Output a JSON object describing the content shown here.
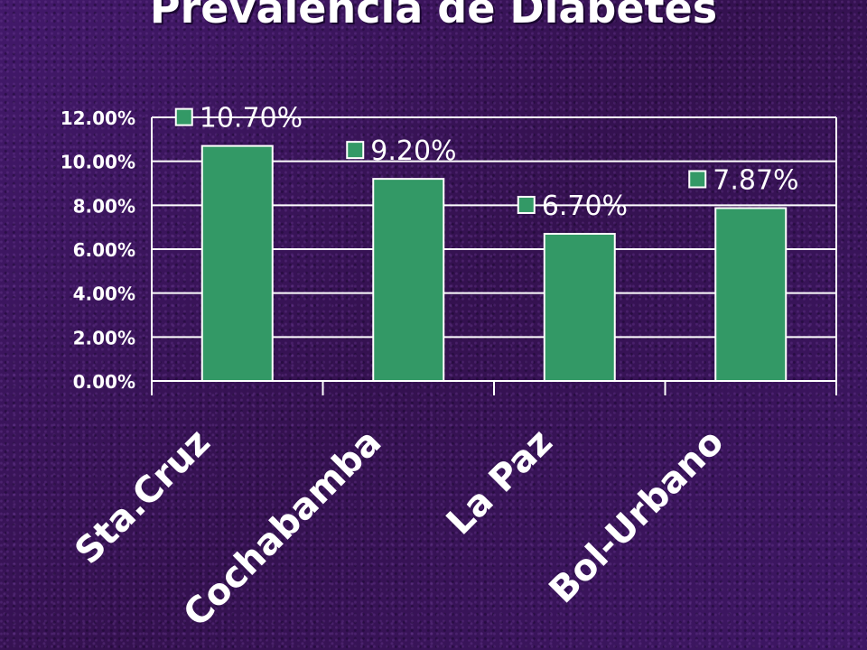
{
  "colors": {
    "background": "#3b1560",
    "bar": "#339966",
    "text": "#ffffff"
  },
  "chart_data": {
    "type": "bar",
    "title": "Prevalencia de Diabetes",
    "categories": [
      "Sta.Cruz",
      "Cochabamba",
      "La Paz",
      "Bol-Urbano"
    ],
    "values": [
      10.7,
      9.2,
      6.7,
      7.87
    ],
    "data_labels": [
      "10.70%",
      "9.20%",
      "6.70%",
      "7.87%"
    ],
    "value_unit": "%",
    "ylim": [
      0,
      12
    ],
    "yticks": [
      0,
      2,
      4,
      6,
      8,
      10,
      12
    ],
    "ytick_labels": [
      "0.00%",
      "2.00%",
      "4.00%",
      "6.00%",
      "8.00%",
      "10.00%",
      "12.00%"
    ],
    "xlabel": "",
    "ylabel": "",
    "grid": true,
    "legend": false
  }
}
